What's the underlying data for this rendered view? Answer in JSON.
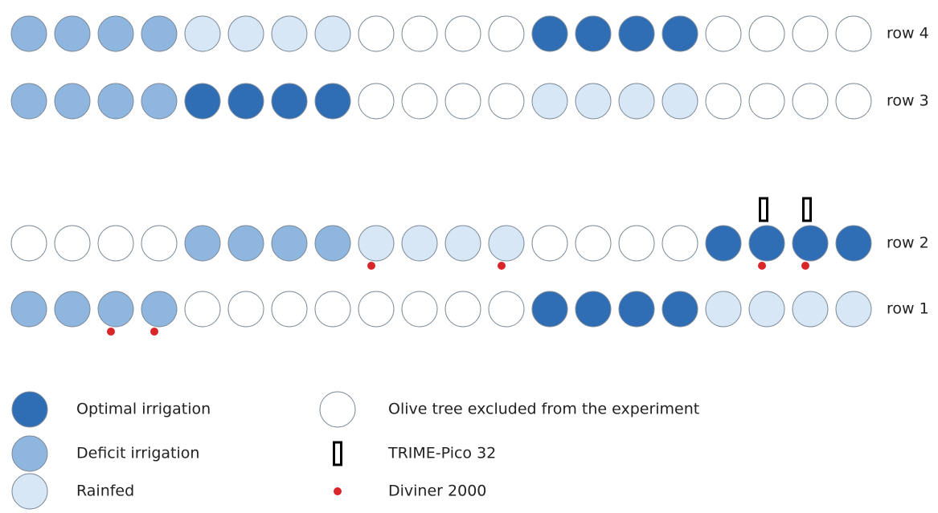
{
  "rows": [
    {
      "label": "row 4",
      "trees": [
        {
          "treatment": "Deficit irrigation"
        },
        {
          "treatment": "Deficit irrigation"
        },
        {
          "treatment": "Deficit irrigation"
        },
        {
          "treatment": "Deficit irrigation"
        },
        {
          "treatment": "Rainfed"
        },
        {
          "treatment": "Rainfed"
        },
        {
          "treatment": "Rainfed"
        },
        {
          "treatment": "Rainfed"
        },
        {
          "treatment": "Olive tree excluded from the experiment"
        },
        {
          "treatment": "Olive tree excluded from the experiment"
        },
        {
          "treatment": "Olive tree excluded from the experiment"
        },
        {
          "treatment": "Olive tree excluded from the experiment"
        },
        {
          "treatment": "Optimal irrigation"
        },
        {
          "treatment": "Optimal irrigation"
        },
        {
          "treatment": "Optimal irrigation"
        },
        {
          "treatment": "Optimal irrigation"
        },
        {
          "treatment": "Olive tree excluded from the experiment"
        },
        {
          "treatment": "Olive tree excluded from the experiment"
        },
        {
          "treatment": "Olive tree excluded from the experiment"
        },
        {
          "treatment": "Olive tree excluded from the experiment"
        }
      ]
    },
    {
      "label": "row 3",
      "trees": [
        {
          "treatment": "Deficit irrigation"
        },
        {
          "treatment": "Deficit irrigation"
        },
        {
          "treatment": "Deficit irrigation"
        },
        {
          "treatment": "Deficit irrigation"
        },
        {
          "treatment": "Optimal irrigation"
        },
        {
          "treatment": "Optimal irrigation"
        },
        {
          "treatment": "Optimal irrigation"
        },
        {
          "treatment": "Optimal irrigation"
        },
        {
          "treatment": "Olive tree excluded from the experiment"
        },
        {
          "treatment": "Olive tree excluded from the experiment"
        },
        {
          "treatment": "Olive tree excluded from the experiment"
        },
        {
          "treatment": "Olive tree excluded from the experiment"
        },
        {
          "treatment": "Rainfed"
        },
        {
          "treatment": "Rainfed"
        },
        {
          "treatment": "Rainfed"
        },
        {
          "treatment": "Rainfed"
        },
        {
          "treatment": "Olive tree excluded from the experiment"
        },
        {
          "treatment": "Olive tree excluded from the experiment"
        },
        {
          "treatment": "Olive tree excluded from the experiment"
        },
        {
          "treatment": "Olive tree excluded from the experiment"
        }
      ]
    },
    {
      "label": "row 2",
      "trees": [
        {
          "treatment": "Olive tree excluded from the experiment"
        },
        {
          "treatment": "Olive tree excluded from the experiment"
        },
        {
          "treatment": "Olive tree excluded from the experiment"
        },
        {
          "treatment": "Olive tree excluded from the experiment"
        },
        {
          "treatment": "Deficit irrigation"
        },
        {
          "treatment": "Deficit irrigation"
        },
        {
          "treatment": "Deficit irrigation"
        },
        {
          "treatment": "Deficit irrigation"
        },
        {
          "treatment": "Rainfed",
          "sensors": [
            "Diviner 2000"
          ]
        },
        {
          "treatment": "Rainfed"
        },
        {
          "treatment": "Rainfed"
        },
        {
          "treatment": "Rainfed",
          "sensors": [
            "Diviner 2000"
          ]
        },
        {
          "treatment": "Olive tree excluded from the experiment"
        },
        {
          "treatment": "Olive tree excluded from the experiment"
        },
        {
          "treatment": "Olive tree excluded from the experiment"
        },
        {
          "treatment": "Olive tree excluded from the experiment"
        },
        {
          "treatment": "Optimal irrigation"
        },
        {
          "treatment": "Optimal irrigation",
          "sensors": [
            "TRIME-Pico 32",
            "Diviner 2000"
          ]
        },
        {
          "treatment": "Optimal irrigation",
          "sensors": [
            "TRIME-Pico 32",
            "Diviner 2000"
          ]
        },
        {
          "treatment": "Optimal irrigation"
        }
      ]
    },
    {
      "label": "row 1",
      "trees": [
        {
          "treatment": "Deficit irrigation"
        },
        {
          "treatment": "Deficit irrigation"
        },
        {
          "treatment": "Deficit irrigation",
          "sensors": [
            "Diviner 2000"
          ]
        },
        {
          "treatment": "Deficit irrigation",
          "sensors": [
            "Diviner 2000"
          ]
        },
        {
          "treatment": "Olive tree excluded from the experiment"
        },
        {
          "treatment": "Olive tree excluded from the experiment"
        },
        {
          "treatment": "Olive tree excluded from the experiment"
        },
        {
          "treatment": "Olive tree excluded from the experiment"
        },
        {
          "treatment": "Olive tree excluded from the experiment"
        },
        {
          "treatment": "Olive tree excluded from the experiment"
        },
        {
          "treatment": "Olive tree excluded from the experiment"
        },
        {
          "treatment": "Olive tree excluded from the experiment"
        },
        {
          "treatment": "Optimal irrigation"
        },
        {
          "treatment": "Optimal irrigation"
        },
        {
          "treatment": "Optimal irrigation"
        },
        {
          "treatment": "Optimal irrigation"
        },
        {
          "treatment": "Rainfed"
        },
        {
          "treatment": "Rainfed"
        },
        {
          "treatment": "Rainfed"
        },
        {
          "treatment": "Rainfed"
        }
      ]
    }
  ],
  "legend": [
    {
      "label": "Optimal irrigation",
      "symbol": "circle",
      "color": "#2f6db5"
    },
    {
      "label": "Deficit irrigation",
      "symbol": "circle",
      "color": "#8fb6df"
    },
    {
      "label": "Rainfed",
      "symbol": "circle",
      "color": "#d8e7f5"
    },
    {
      "label": "Olive tree excluded from the experiment",
      "symbol": "circle",
      "color": "#ffffff"
    },
    {
      "label": "TRIME-Pico 32",
      "symbol": "rect",
      "color": "#000000"
    },
    {
      "label": "Diviner 2000",
      "symbol": "dot",
      "color": "#d9262b"
    }
  ]
}
